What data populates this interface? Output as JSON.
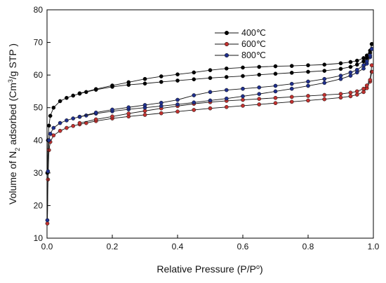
{
  "chart_data": {
    "type": "line",
    "xlabel": {
      "text": "Relative Pressure (P/P",
      "sup": "o",
      "end": ")"
    },
    "ylabel": {
      "pre": "Volume of N",
      "sub": "2",
      "mid": " adsorbed (Cm",
      "sup": "3",
      "post": "/g STP )"
    },
    "xlim": [
      0.0,
      1.0
    ],
    "ylim": [
      10,
      80
    ],
    "xticks": [
      "0.0",
      "0.2",
      "0.4",
      "0.6",
      "0.8",
      "1.0"
    ],
    "yticks": [
      "10",
      "20",
      "30",
      "40",
      "50",
      "60",
      "70",
      "80"
    ],
    "legend_position": "top-center",
    "grid": false,
    "series": [
      {
        "name": "400℃",
        "color": "#000000",
        "adsorption": {
          "x": [
            0.001,
            0.003,
            0.006,
            0.01,
            0.02,
            0.04,
            0.06,
            0.08,
            0.1,
            0.12,
            0.15,
            0.2,
            0.25,
            0.3,
            0.35,
            0.4,
            0.45,
            0.5,
            0.55,
            0.6,
            0.65,
            0.7,
            0.75,
            0.8,
            0.85,
            0.9,
            0.93,
            0.95,
            0.97,
            0.98,
            0.99,
            0.995
          ],
          "y": [
            30.0,
            40.0,
            44.5,
            47.5,
            50.0,
            52.0,
            53.0,
            53.7,
            54.3,
            54.8,
            55.5,
            56.4,
            57.0,
            57.4,
            57.9,
            58.3,
            58.7,
            59.1,
            59.4,
            59.7,
            60.1,
            60.4,
            60.7,
            61.0,
            61.3,
            61.9,
            62.5,
            63.2,
            64.2,
            65.2,
            66.8,
            69.5
          ]
        },
        "desorption": {
          "x": [
            0.995,
            0.99,
            0.98,
            0.97,
            0.95,
            0.93,
            0.9,
            0.85,
            0.8,
            0.75,
            0.7,
            0.65,
            0.6,
            0.55,
            0.5,
            0.45,
            0.4,
            0.35,
            0.3,
            0.25,
            0.2,
            0.15,
            0.1
          ],
          "y": [
            69.5,
            67.5,
            66.0,
            65.2,
            64.4,
            64.0,
            63.6,
            63.2,
            63.0,
            62.8,
            62.7,
            62.5,
            62.3,
            62.0,
            61.5,
            60.8,
            60.2,
            59.6,
            58.8,
            57.8,
            56.8,
            55.7,
            54.4
          ]
        }
      },
      {
        "name": "600℃",
        "color": "#c0312f",
        "adsorption": {
          "x": [
            0.001,
            0.003,
            0.006,
            0.01,
            0.02,
            0.04,
            0.06,
            0.08,
            0.1,
            0.12,
            0.15,
            0.2,
            0.25,
            0.3,
            0.35,
            0.4,
            0.45,
            0.5,
            0.55,
            0.6,
            0.65,
            0.7,
            0.75,
            0.8,
            0.85,
            0.9,
            0.93,
            0.95,
            0.97,
            0.98,
            0.99,
            0.995
          ],
          "y": [
            14.5,
            28.0,
            37.0,
            39.5,
            41.5,
            42.9,
            43.8,
            44.4,
            44.9,
            45.3,
            45.9,
            46.7,
            47.3,
            47.8,
            48.3,
            48.8,
            49.3,
            49.8,
            50.2,
            50.6,
            51.0,
            51.4,
            51.8,
            52.2,
            52.6,
            53.1,
            53.5,
            54.0,
            54.8,
            56.0,
            58.0,
            61.0
          ]
        },
        "desorption": {
          "x": [
            0.995,
            0.99,
            0.98,
            0.97,
            0.95,
            0.93,
            0.9,
            0.85,
            0.8,
            0.75,
            0.7,
            0.65,
            0.6,
            0.55,
            0.5,
            0.45,
            0.4,
            0.35,
            0.3,
            0.25,
            0.2,
            0.15,
            0.1
          ],
          "y": [
            63.0,
            58.5,
            56.8,
            55.8,
            55.0,
            54.6,
            54.2,
            53.9,
            53.6,
            53.3,
            53.0,
            52.7,
            52.4,
            52.1,
            51.7,
            51.2,
            50.5,
            49.8,
            49.0,
            48.2,
            47.3,
            46.4,
            45.3
          ]
        }
      },
      {
        "name": "800℃",
        "color": "#1f2f8c",
        "adsorption": {
          "x": [
            0.001,
            0.003,
            0.006,
            0.01,
            0.02,
            0.04,
            0.06,
            0.08,
            0.1,
            0.12,
            0.15,
            0.2,
            0.25,
            0.3,
            0.35,
            0.4,
            0.45,
            0.5,
            0.55,
            0.6,
            0.65,
            0.7,
            0.75,
            0.8,
            0.85,
            0.9,
            0.93,
            0.95,
            0.97,
            0.98,
            0.99,
            0.995
          ],
          "y": [
            15.5,
            30.5,
            40.0,
            42.0,
            43.8,
            45.3,
            46.1,
            46.7,
            47.2,
            47.6,
            48.2,
            48.9,
            49.5,
            50.0,
            50.5,
            51.0,
            51.6,
            52.2,
            52.8,
            53.5,
            54.2,
            55.0,
            55.8,
            56.7,
            57.6,
            58.8,
            59.8,
            60.8,
            62.0,
            63.5,
            65.5,
            68.0
          ]
        },
        "desorption": {
          "x": [
            0.995,
            0.99,
            0.98,
            0.97,
            0.95,
            0.93,
            0.9,
            0.85,
            0.8,
            0.75,
            0.7,
            0.65,
            0.6,
            0.55,
            0.5,
            0.45,
            0.4,
            0.35,
            0.3,
            0.25,
            0.2,
            0.15,
            0.1
          ],
          "y": [
            68.0,
            66.0,
            64.2,
            63.0,
            61.6,
            60.8,
            59.8,
            58.8,
            58.0,
            57.3,
            56.7,
            56.2,
            55.8,
            55.4,
            54.8,
            53.8,
            52.4,
            51.5,
            50.8,
            50.1,
            49.4,
            48.5,
            47.2
          ]
        }
      }
    ]
  }
}
